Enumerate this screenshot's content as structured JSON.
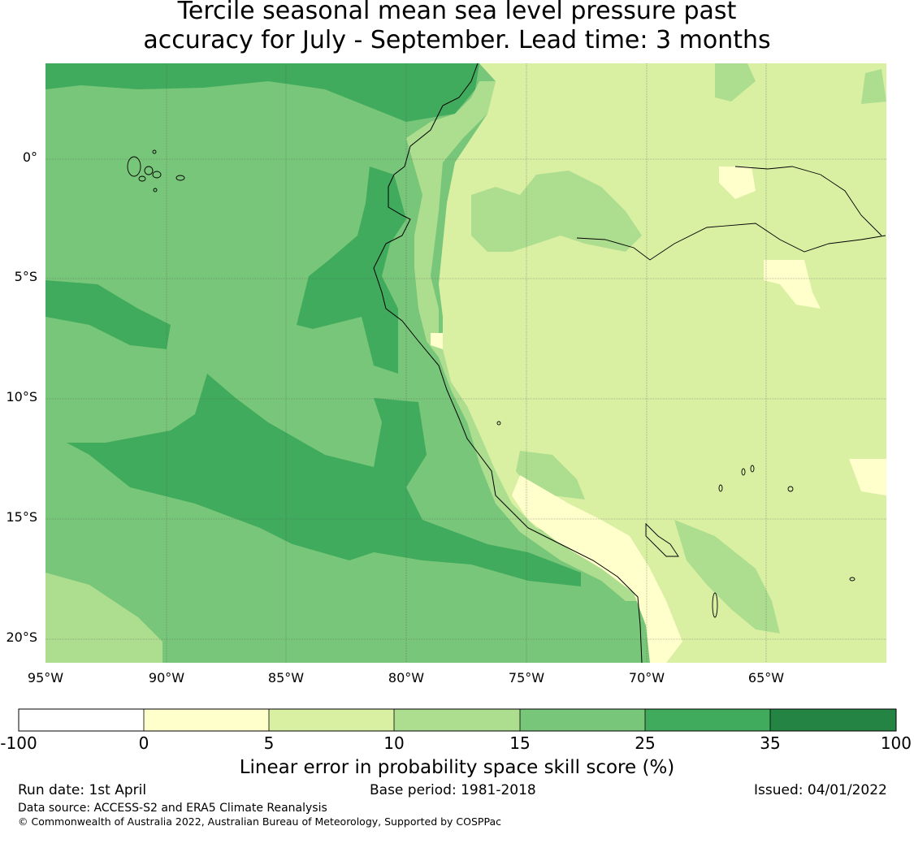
{
  "title": {
    "line1": "Tercile seasonal mean sea level pressure past",
    "line2": "accuracy for July - September. Lead time: 3 months"
  },
  "axes": {
    "lat_ticks": [
      {
        "value": 0,
        "label": "0°"
      },
      {
        "value": -5,
        "label": "5°S"
      },
      {
        "value": -10,
        "label": "10°S"
      },
      {
        "value": -15,
        "label": "15°S"
      },
      {
        "value": -20,
        "label": "20°S"
      }
    ],
    "lon_ticks": [
      {
        "value": -95,
        "label": "95°W"
      },
      {
        "value": -90,
        "label": "90°W"
      },
      {
        "value": -85,
        "label": "85°W"
      },
      {
        "value": -80,
        "label": "80°W"
      },
      {
        "value": -75,
        "label": "75°W"
      },
      {
        "value": -70,
        "label": "70°W"
      },
      {
        "value": -65,
        "label": "65°W"
      }
    ],
    "lon_range": [
      -95,
      -60
    ],
    "lat_range": [
      -21,
      4
    ],
    "grid": true
  },
  "colorbar": {
    "bins": [
      {
        "from": -100,
        "to": 0,
        "color": "#ffffff"
      },
      {
        "from": 0,
        "to": 5,
        "color": "#ffffcc"
      },
      {
        "from": 5,
        "to": 10,
        "color": "#d9f0a3"
      },
      {
        "from": 10,
        "to": 15,
        "color": "#addd8e"
      },
      {
        "from": 15,
        "to": 25,
        "color": "#78c679"
      },
      {
        "from": 25,
        "to": 35,
        "color": "#41ab5d"
      },
      {
        "from": 35,
        "to": 100,
        "color": "#238443"
      }
    ],
    "labels": [
      "-100",
      "0",
      "5",
      "10",
      "15",
      "25",
      "35",
      "100"
    ],
    "title": "Linear error in probability space skill score (%)"
  },
  "footer": {
    "run_date": "Run date: 1st April",
    "base_period": "Base period: 1981-2018",
    "issued": "Issued: 04/01/2022",
    "data_source": "Data source: ACCESS-S2 and ERA5 Climate Reanalysis",
    "copyright": "© Commonwealth of Australia 2022, Australian Bureau of Meteorology, Supported by COSPPac"
  }
}
